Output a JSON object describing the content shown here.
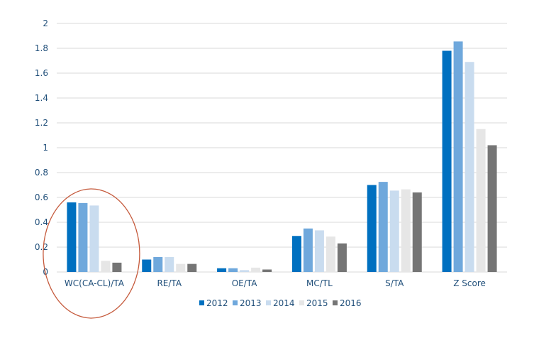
{
  "chart_data": {
    "type": "bar",
    "categories": [
      "WC(CA-CL)/TA",
      "RE/TA",
      "OE/TA",
      "MC/TL",
      "S/TA",
      "Z Score"
    ],
    "series": [
      {
        "name": "2012",
        "color": "#0070c0",
        "values": [
          0.56,
          0.1,
          0.03,
          0.29,
          0.7,
          1.78
        ]
      },
      {
        "name": "2013",
        "color": "#6fa8dc",
        "values": [
          0.555,
          0.12,
          0.03,
          0.35,
          0.725,
          1.855
        ]
      },
      {
        "name": "2014",
        "color": "#c9dcef",
        "values": [
          0.535,
          0.12,
          0.015,
          0.335,
          0.655,
          1.69
        ]
      },
      {
        "name": "2015",
        "color": "#e6e6e6",
        "values": [
          0.09,
          0.065,
          0.035,
          0.285,
          0.665,
          1.15
        ]
      },
      {
        "name": "2016",
        "color": "#757575",
        "values": [
          0.075,
          0.065,
          0.02,
          0.23,
          0.64,
          1.02
        ]
      }
    ],
    "yticks": [
      "0",
      "0.2",
      "0.4",
      "0.6",
      "0.8",
      "1",
      "1.2",
      "1.4",
      "1.6",
      "1.8",
      "2"
    ],
    "ylim": [
      0,
      2
    ],
    "grid": true,
    "legend": "bottom",
    "annotation": {
      "shape": "ellipse",
      "target": "WC(CA-CL)/TA",
      "color": "#c55a3c"
    }
  }
}
